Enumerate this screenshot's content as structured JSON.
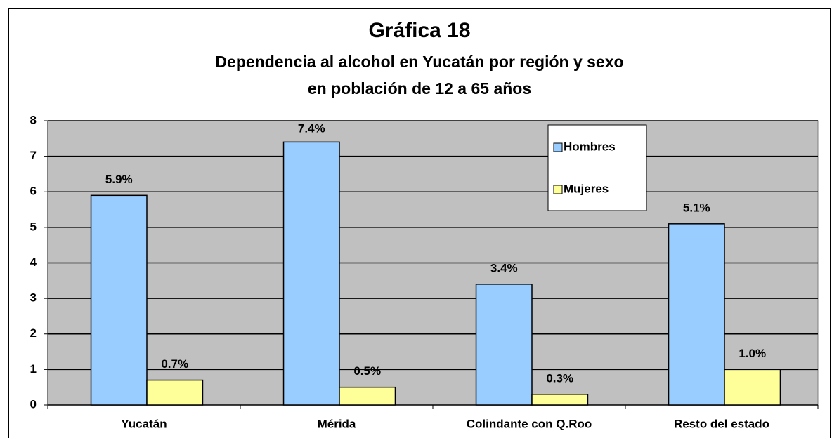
{
  "chart_data": {
    "type": "bar",
    "title": "Gráfica 18",
    "subtitle": [
      "Dependencia al alcohol en Yucatán por región y sexo",
      "en población de 12 a 65 años"
    ],
    "categories": [
      "Yucatán",
      "Mérida",
      "Colindante con Q.Roo",
      "Resto del estado"
    ],
    "series": [
      {
        "name": "Hombres",
        "color": "#99ccff",
        "values": [
          5.9,
          7.4,
          3.4,
          5.1
        ],
        "value_labels": [
          "5.9%",
          "7.4%",
          "3.4%",
          "5.1%"
        ]
      },
      {
        "name": "Mujeres",
        "color": "#ffff99",
        "values": [
          0.7,
          0.5,
          0.3,
          1.0
        ],
        "value_labels": [
          "0.7%",
          "0.5%",
          "0.3%",
          "1.0%"
        ]
      }
    ],
    "ylim": [
      0,
      8
    ],
    "yticks": [
      0,
      1,
      2,
      3,
      4,
      5,
      6,
      7,
      8
    ],
    "grid": true,
    "legend": "top-right"
  }
}
